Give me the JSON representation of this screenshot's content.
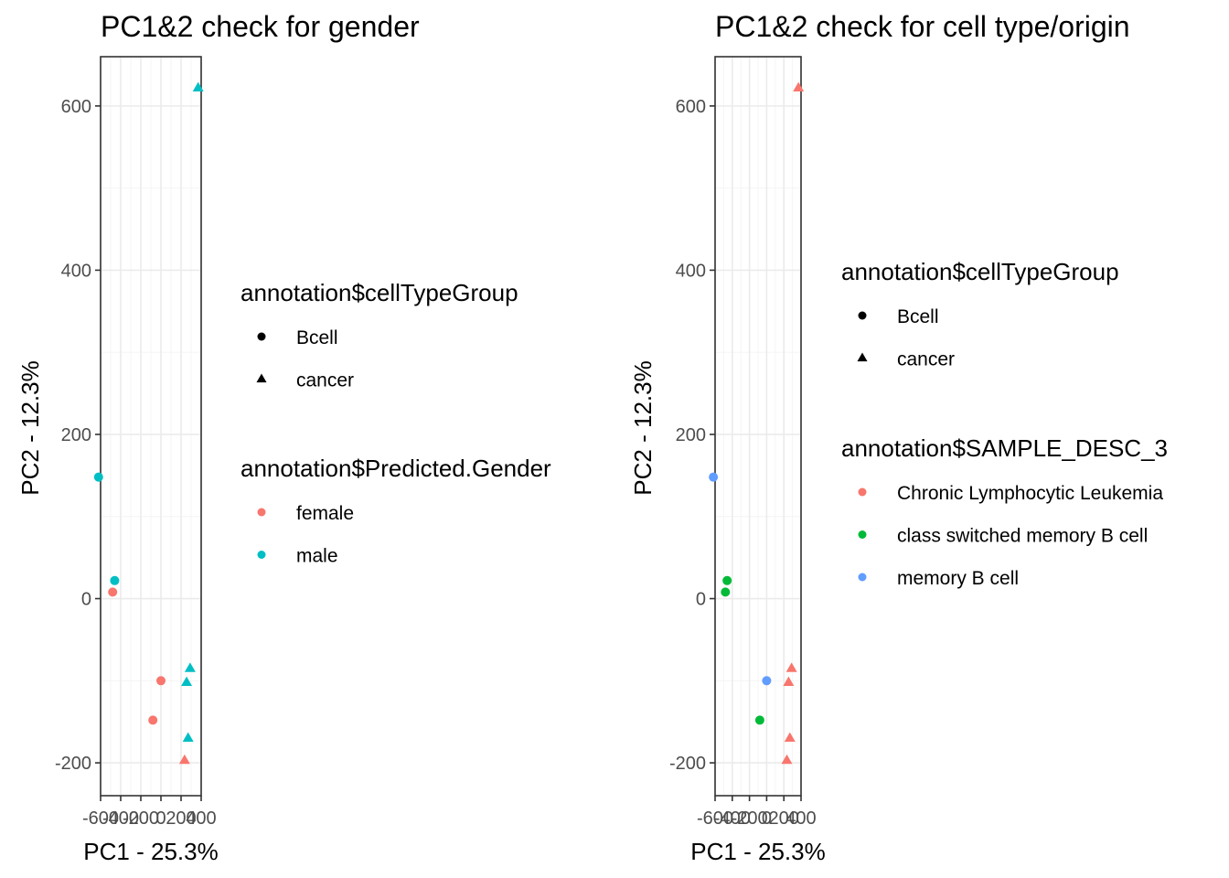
{
  "chart_data": [
    {
      "type": "scatter",
      "title": "PC1&2 check for gender",
      "xlabel": "PC1 - 25.3%",
      "ylabel": "PC2 - 12.3%",
      "xlim": [
        -600,
        400
      ],
      "ylim": [
        -240,
        660
      ],
      "xticks": [
        -600,
        -400,
        -200,
        0,
        200,
        400
      ],
      "yticks": [
        -200,
        0,
        200,
        400,
        600
      ],
      "xticklabels": [
        "-600",
        "-400",
        "-200",
        "0",
        "200",
        "400"
      ],
      "yticklabels": [
        "-200",
        "0",
        "200",
        "400",
        "600"
      ],
      "grid": true,
      "legend_position": "right",
      "legends": [
        {
          "title": "annotation$cellTypeGroup",
          "kind": "shape",
          "entries": [
            {
              "label": "Bcell",
              "shape": "circle"
            },
            {
              "label": "cancer",
              "shape": "triangle"
            }
          ]
        },
        {
          "title": "annotation$Predicted.Gender",
          "kind": "color",
          "entries": [
            {
              "label": "female",
              "color": "#F8766D"
            },
            {
              "label": "male",
              "color": "#00BFC4"
            }
          ]
        }
      ],
      "points": [
        {
          "x": 370,
          "y": 622,
          "shape": "triangle",
          "color": "#00BFC4"
        },
        {
          "x": -620,
          "y": 148,
          "shape": "circle",
          "color": "#00BFC4"
        },
        {
          "x": -460,
          "y": 22,
          "shape": "circle",
          "color": "#00BFC4"
        },
        {
          "x": -480,
          "y": 8,
          "shape": "circle",
          "color": "#F8766D"
        },
        {
          "x": 0,
          "y": -100,
          "shape": "circle",
          "color": "#F8766D"
        },
        {
          "x": -80,
          "y": -148,
          "shape": "circle",
          "color": "#F8766D"
        },
        {
          "x": 290,
          "y": -85,
          "shape": "triangle",
          "color": "#00BFC4"
        },
        {
          "x": 255,
          "y": -102,
          "shape": "triangle",
          "color": "#00BFC4"
        },
        {
          "x": 270,
          "y": -170,
          "shape": "triangle",
          "color": "#00BFC4"
        },
        {
          "x": 235,
          "y": -197,
          "shape": "triangle",
          "color": "#F8766D"
        }
      ]
    },
    {
      "type": "scatter",
      "title": "PC1&2 check for cell type/origin",
      "xlabel": "PC1 - 25.3%",
      "ylabel": "PC2 - 12.3%",
      "xlim": [
        -600,
        400
      ],
      "ylim": [
        -240,
        660
      ],
      "xticks": [
        -600,
        -400,
        -200,
        0,
        200,
        400
      ],
      "yticks": [
        -200,
        0,
        200,
        400,
        600
      ],
      "xticklabels": [
        "-600",
        "-400",
        "-200",
        "0",
        "200",
        "400"
      ],
      "yticklabels": [
        "-200",
        "0",
        "200",
        "400",
        "600"
      ],
      "grid": true,
      "legend_position": "right",
      "legends": [
        {
          "title": "annotation$cellTypeGroup",
          "kind": "shape",
          "entries": [
            {
              "label": "Bcell",
              "shape": "circle"
            },
            {
              "label": "cancer",
              "shape": "triangle"
            }
          ]
        },
        {
          "title": "annotation$SAMPLE_DESC_3",
          "kind": "color",
          "entries": [
            {
              "label": "Chronic Lymphocytic Leukemia",
              "color": "#F8766D"
            },
            {
              "label": "class switched memory B cell",
              "color": "#00BA38"
            },
            {
              "label": "memory B cell",
              "color": "#619CFF"
            }
          ]
        }
      ],
      "points": [
        {
          "x": 370,
          "y": 622,
          "shape": "triangle",
          "color": "#F8766D"
        },
        {
          "x": -620,
          "y": 148,
          "shape": "circle",
          "color": "#619CFF"
        },
        {
          "x": -460,
          "y": 22,
          "shape": "circle",
          "color": "#00BA38"
        },
        {
          "x": -480,
          "y": 8,
          "shape": "circle",
          "color": "#00BA38"
        },
        {
          "x": 0,
          "y": -100,
          "shape": "circle",
          "color": "#619CFF"
        },
        {
          "x": -80,
          "y": -148,
          "shape": "circle",
          "color": "#00BA38"
        },
        {
          "x": 290,
          "y": -85,
          "shape": "triangle",
          "color": "#F8766D"
        },
        {
          "x": 255,
          "y": -102,
          "shape": "triangle",
          "color": "#F8766D"
        },
        {
          "x": 270,
          "y": -170,
          "shape": "triangle",
          "color": "#F8766D"
        },
        {
          "x": 235,
          "y": -197,
          "shape": "triangle",
          "color": "#F8766D"
        }
      ]
    }
  ]
}
